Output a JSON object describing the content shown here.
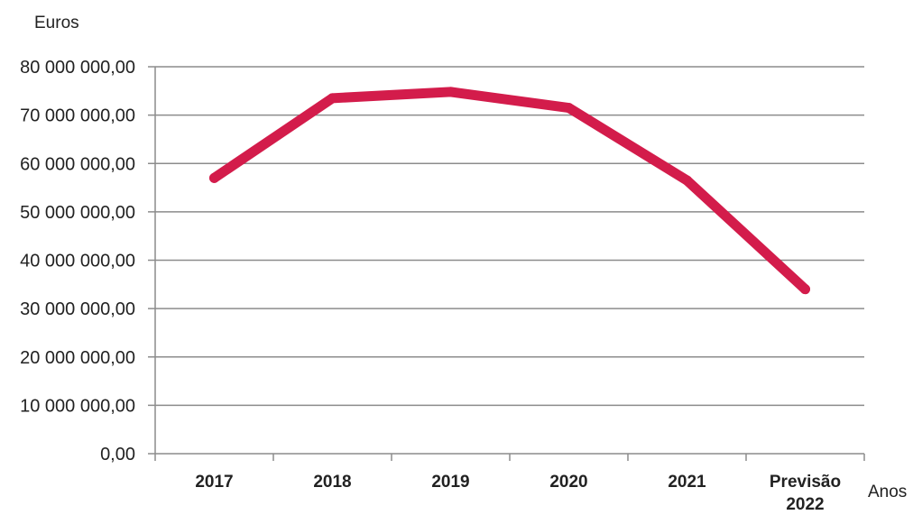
{
  "chart_data": {
    "type": "line",
    "title": "",
    "ylabel": "Euros",
    "xlabel": "Anos",
    "categories": [
      [
        "2017"
      ],
      [
        "2018"
      ],
      [
        "2019"
      ],
      [
        "2020"
      ],
      [
        "2021"
      ],
      [
        "Previsão",
        "2022"
      ]
    ],
    "series": [
      {
        "values": [
          57000000,
          73500000,
          74800000,
          71500000,
          56500000,
          34000000
        ],
        "color": "#d31c4b"
      }
    ],
    "yticks": [
      "0,00",
      "10 000 000,00",
      "20 000 000,00",
      "30 000 000,00",
      "40 000 000,00",
      "50 000 000,00",
      "60 000 000,00",
      "70 000 000,00",
      "80 000 000,00"
    ],
    "ylim": [
      0,
      80000000
    ],
    "grid": true,
    "gridline_color": "#8c8c8c",
    "axis_color": "#8c8c8c"
  }
}
